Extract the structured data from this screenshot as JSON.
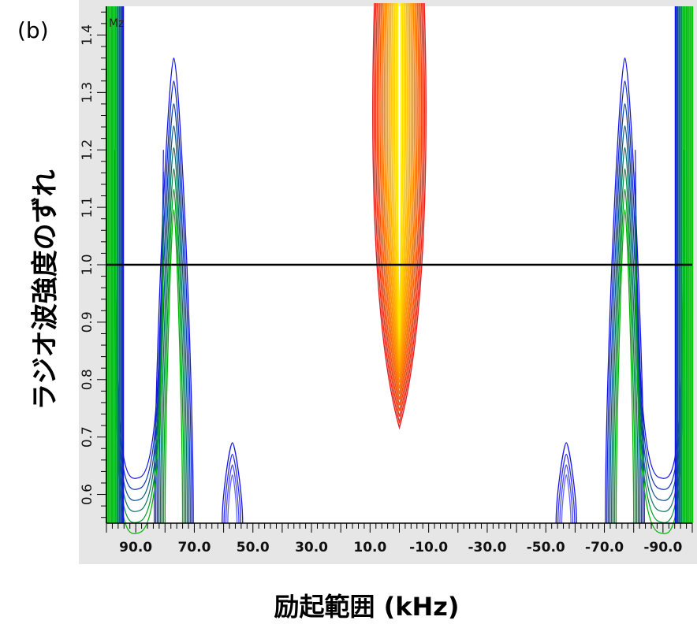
{
  "panel_label": "(b)",
  "chart_data": {
    "type": "heatmap",
    "subtype": "contour",
    "title": "",
    "corner_label": "Mz",
    "xlabel": "励起範囲 (kHz)",
    "ylabel": "ラジオ波強度のずれ",
    "x_ticks": [
      "90.0",
      "70.0",
      "50.0",
      "30.0",
      "10.0",
      "-10.0",
      "-30.0",
      "-50.0",
      "-70.0",
      "-90.0"
    ],
    "y_ticks": [
      "0.6",
      "0.7",
      "0.8",
      "0.9",
      "1.0",
      "1.1",
      "1.2",
      "1.3",
      "1.4"
    ],
    "xlim": [
      100,
      -100
    ],
    "ylim": [
      0.55,
      1.45
    ],
    "reference_line": {
      "y": 1.0,
      "color": "#000000"
    },
    "colors": {
      "low": "#1414e6",
      "mid": "#00b400",
      "edge": "#00d200",
      "high_outer": "#e61e1e",
      "high_mid": "#ff8c00",
      "high_inner": "#ffe600",
      "frame_bg": "#e6e6e6"
    },
    "features": [
      {
        "name": "central-lobe",
        "x_center": 0,
        "x_half_width_max": 10,
        "y_min": 0.7,
        "y_max": 1.45,
        "level": "high"
      },
      {
        "name": "left-side-lobe",
        "x_center": 77,
        "x_half_width": 3.5,
        "y_peak": 1.36,
        "level": "low"
      },
      {
        "name": "right-side-lobe",
        "x_center": -77,
        "x_half_width": 3.5,
        "y_peak": 1.36,
        "level": "low"
      },
      {
        "name": "left-small-lobe",
        "x_center": 57,
        "x_half_width": 2.5,
        "y_peak": 0.69,
        "level": "low"
      },
      {
        "name": "right-small-lobe",
        "x_center": -57,
        "x_half_width": 2.5,
        "y_peak": 0.69,
        "level": "low"
      },
      {
        "name": "left-edge-band",
        "x_from": 100,
        "x_to": 97,
        "level": "mid"
      },
      {
        "name": "right-edge-band",
        "x_from": -97,
        "x_to": -100,
        "level": "mid"
      }
    ]
  }
}
